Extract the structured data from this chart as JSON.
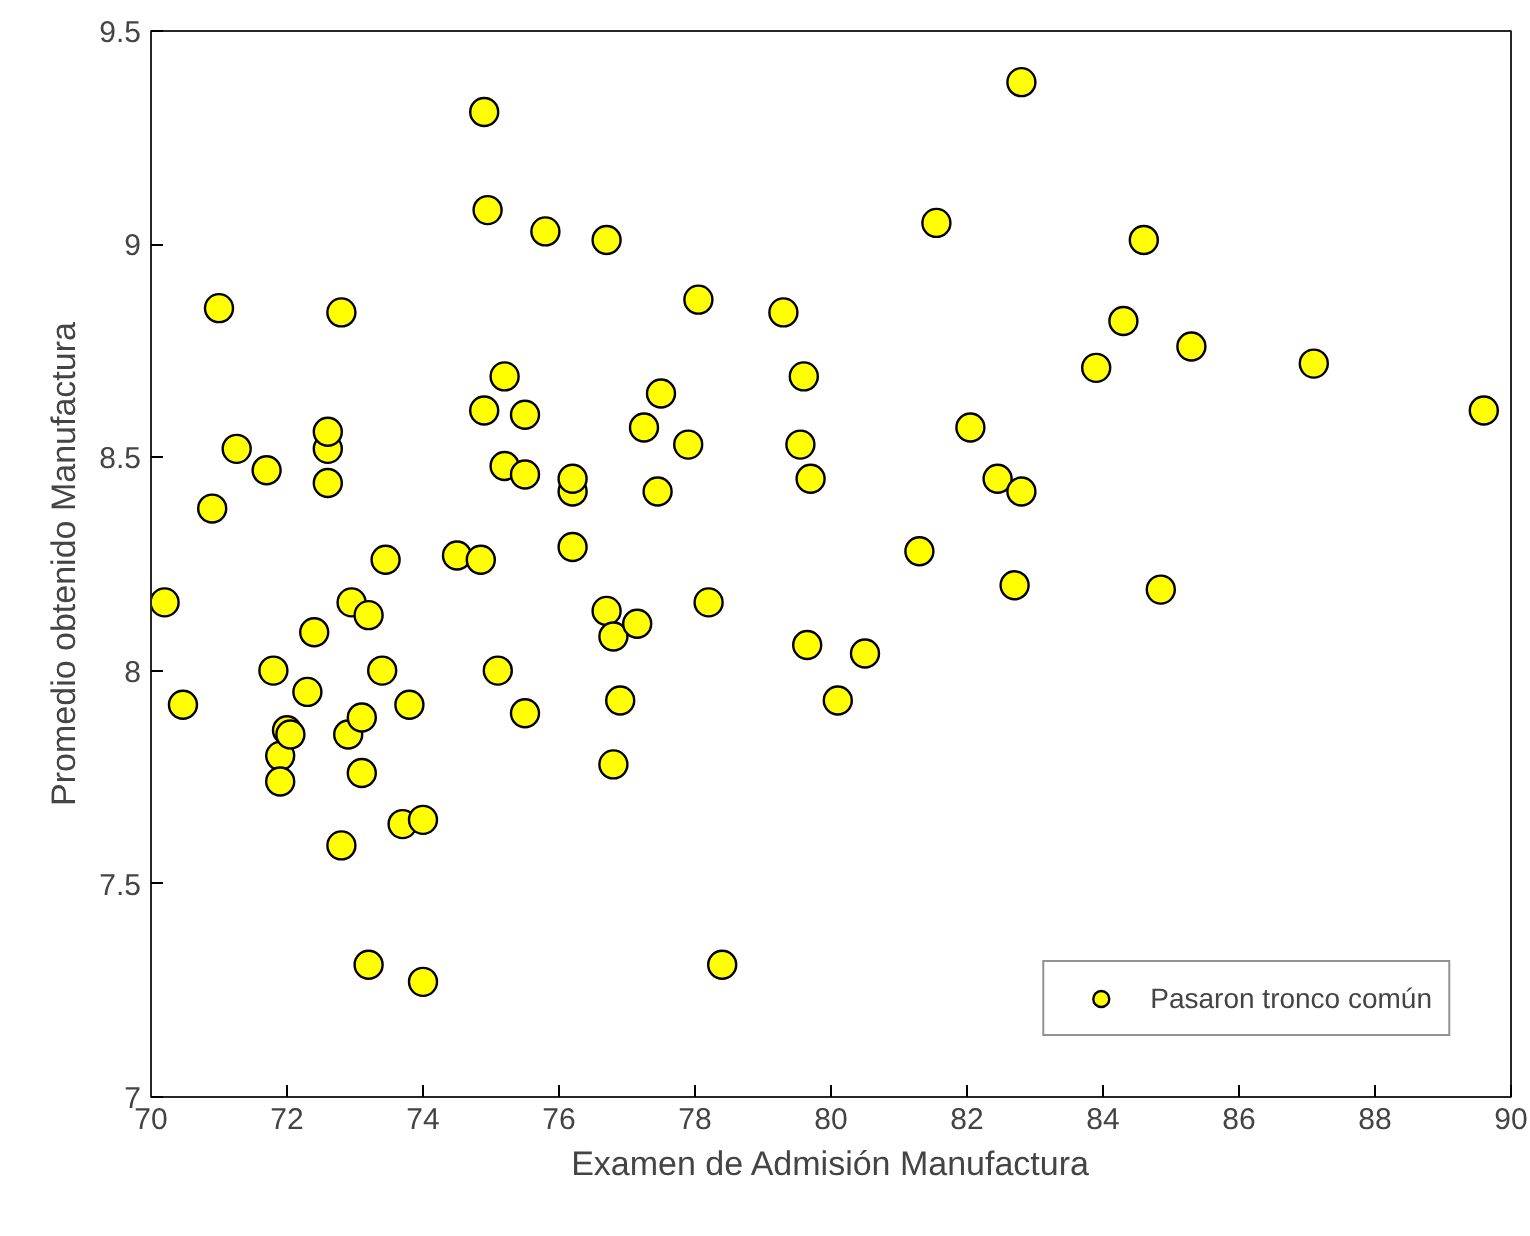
{
  "chart_data": {
    "type": "scatter",
    "xlabel": "Examen de Admisión Manufactura",
    "ylabel": "Promedio obtenido Manufactura",
    "xlim": [
      70,
      90
    ],
    "xticks": [
      70,
      72,
      74,
      76,
      78,
      80,
      82,
      84,
      86,
      88,
      90
    ],
    "ylim": [
      7,
      9.5
    ],
    "yticks": [
      7,
      7.5,
      8,
      8.5,
      9,
      9.5
    ],
    "grid": false,
    "legend": "bottom right",
    "marker": "circle",
    "series": [
      {
        "name": "Pasaron tronco común",
        "color": "#ffff00",
        "x": [
          70.2,
          70.47,
          70.9,
          71.0,
          71.26,
          71.7,
          71.8,
          71.9,
          71.9,
          72.0,
          72.05,
          72.3,
          72.4,
          72.6,
          72.6,
          72.6,
          72.8,
          72.8,
          72.9,
          72.95,
          73.1,
          73.2,
          73.1,
          73.2,
          73.4,
          73.45,
          73.7,
          73.8,
          74.0,
          74.0,
          74.5,
          74.85,
          74.9,
          74.9,
          74.95,
          75.1,
          75.2,
          75.2,
          75.5,
          75.5,
          75.5,
          75.8,
          76.2,
          76.2,
          76.2,
          76.7,
          76.7,
          76.8,
          76.8,
          76.9,
          77.15,
          77.25,
          77.45,
          77.5,
          77.9,
          78.05,
          78.2,
          78.4,
          79.3,
          79.55,
          79.6,
          79.7,
          79.65,
          80.1,
          80.5,
          81.3,
          81.55,
          82.05,
          82.45,
          82.7,
          82.8,
          82.8,
          83.9,
          84.3,
          84.6,
          84.85,
          85.3,
          87.1,
          89.6
        ],
        "values": [
          8.16,
          7.92,
          8.38,
          8.85,
          8.52,
          8.47,
          8.0,
          7.8,
          7.74,
          7.86,
          7.85,
          7.95,
          8.09,
          8.52,
          8.56,
          8.44,
          8.84,
          7.59,
          7.85,
          8.16,
          7.89,
          8.13,
          7.76,
          7.31,
          8.0,
          8.26,
          7.64,
          7.92,
          7.65,
          7.27,
          8.27,
          8.26,
          9.31,
          8.61,
          9.08,
          8.0,
          8.69,
          8.48,
          8.6,
          8.46,
          7.9,
          9.03,
          8.42,
          8.45,
          8.29,
          9.01,
          8.14,
          7.78,
          8.08,
          7.93,
          8.11,
          8.57,
          8.42,
          8.65,
          8.53,
          8.87,
          8.16,
          7.31,
          8.84,
          8.53,
          8.69,
          8.45,
          8.06,
          7.93,
          8.04,
          8.28,
          9.05,
          8.57,
          8.45,
          8.2,
          8.42,
          9.38,
          8.71,
          8.82,
          9.01,
          8.19,
          8.76,
          8.72,
          8.61
        ]
      }
    ]
  }
}
